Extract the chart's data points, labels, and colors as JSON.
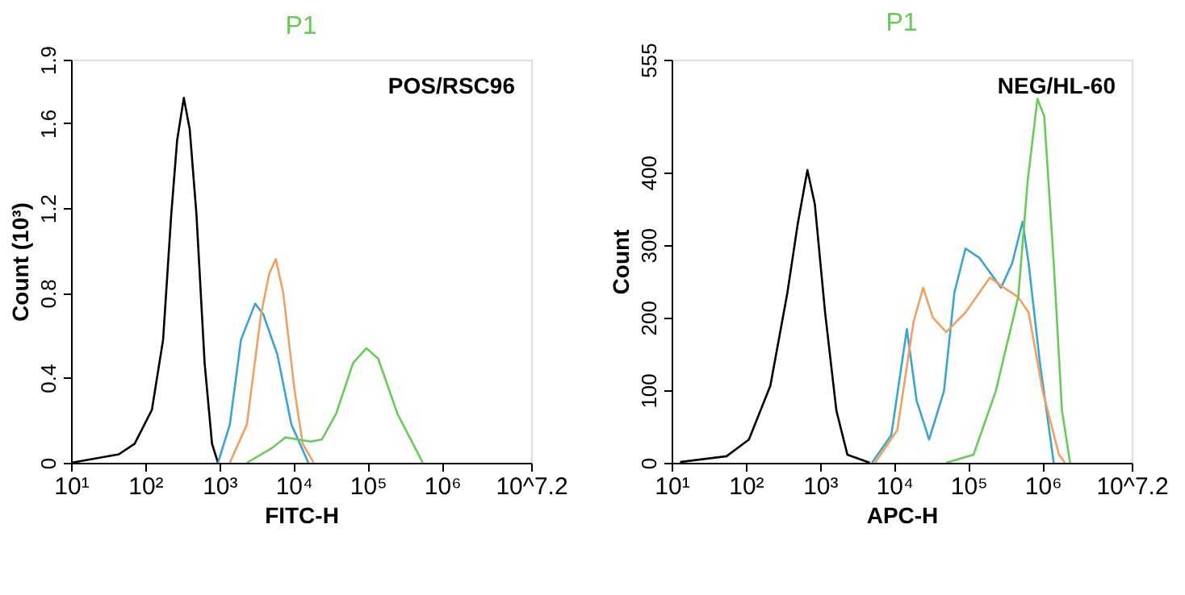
{
  "chart_data": [
    {
      "type": "line",
      "title": "P1",
      "xlabel": "FITC-H",
      "ylabel": "Count (10³)",
      "annotations": [
        "POS/RSC96"
      ],
      "log": "x",
      "grid": false,
      "xlim": [
        10,
        15848932
      ],
      "xticks": [
        {
          "value": 10,
          "label": "10¹"
        },
        {
          "value": 100,
          "label": "10²"
        },
        {
          "value": 1000,
          "label": "10³"
        },
        {
          "value": 10000,
          "label": "10⁴"
        },
        {
          "value": 100000,
          "label": "10⁵"
        },
        {
          "value": 1000000,
          "label": "10⁶"
        },
        {
          "value": 15848932,
          "label": "10^7.2"
        }
      ],
      "ylim": [
        0,
        1.9
      ],
      "yticks": [
        0,
        0.4,
        0.8,
        1.2,
        1.6,
        1.9
      ],
      "series": [
        {
          "color": "#000000",
          "x": [
            10,
            44,
            72,
            123,
            174,
            224,
            269,
            331,
            398,
            490,
            631,
            794,
            955
          ],
          "values": [
            0,
            0.04,
            0.09,
            0.25,
            0.58,
            1.17,
            1.52,
            1.72,
            1.57,
            1.17,
            0.47,
            0.09,
            0
          ]
        },
        {
          "color": "#3aa6d0",
          "x": [
            955,
            1380,
            1950,
            3020,
            3890,
            6030,
            9330,
            15800
          ],
          "values": [
            0,
            0.18,
            0.58,
            0.75,
            0.7,
            0.51,
            0.18,
            0
          ]
        },
        {
          "color": "#f0a060",
          "x": [
            1380,
            2340,
            3630,
            4680,
            5750,
            7240,
            10200,
            13200,
            18600
          ],
          "values": [
            0,
            0.18,
            0.7,
            0.89,
            0.96,
            0.8,
            0.35,
            0.09,
            0
          ]
        },
        {
          "color": "#66cc55",
          "x": [
            2340,
            5130,
            7760,
            11200,
            17000,
            24000,
            37200,
            63100,
            95500,
            138000,
            251000,
            550000
          ],
          "values": [
            0,
            0.07,
            0.12,
            0.11,
            0.1,
            0.11,
            0.23,
            0.47,
            0.54,
            0.49,
            0.23,
            0
          ]
        }
      ]
    },
    {
      "type": "line",
      "title": "P1",
      "xlabel": "APC-H",
      "ylabel": "Count",
      "annotations": [
        "NEG/HL-60"
      ],
      "log": "x",
      "grid": false,
      "xlim": [
        10,
        15848932
      ],
      "xticks": [
        {
          "value": 10,
          "label": "10¹"
        },
        {
          "value": 100,
          "label": "10²"
        },
        {
          "value": 1000,
          "label": "10³"
        },
        {
          "value": 10000,
          "label": "10⁴"
        },
        {
          "value": 100000,
          "label": "10⁵"
        },
        {
          "value": 1000000,
          "label": "10⁶"
        },
        {
          "value": 15848932,
          "label": "10^7.2"
        }
      ],
      "ylim": [
        0,
        555
      ],
      "yticks": [
        0,
        100,
        200,
        300,
        400,
        555
      ],
      "series": [
        {
          "color": "#000000",
          "x": [
            13,
            55,
            110,
            214,
            363,
            501,
            676,
            851,
            1170,
            1660,
            2340,
            4680
          ],
          "values": [
            1,
            9,
            32,
            106,
            234,
            329,
            403,
            356,
            207,
            72,
            11,
            0
          ]
        },
        {
          "color": "#3aa6d0",
          "x": [
            5010,
            9120,
            14800,
            20000,
            29500,
            46800,
            64600,
            91200,
            141000,
            275000,
            389000,
            537000,
            646000,
            912000,
            1410000
          ],
          "values": [
            0,
            38,
            184,
            86,
            32,
            99,
            234,
            295,
            282,
            241,
            275,
            332,
            275,
            140,
            0
          ]
        },
        {
          "color": "#f0a060",
          "x": [
            5500,
            11000,
            18200,
            24500,
            33100,
            50100,
            91200,
            195000,
            302000,
            468000,
            646000,
            1000000,
            1660000,
            2000000
          ],
          "values": [
            0,
            45,
            194,
            241,
            200,
            180,
            207,
            255,
            241,
            228,
            207,
            99,
            11,
            0
          ]
        },
        {
          "color": "#66cc55",
          "x": [
            50100,
            117000,
            234000,
            468000,
            631000,
            851000,
            1050000,
            1410000,
            1820000,
            2340000
          ],
          "values": [
            0,
            11,
            99,
            228,
            390,
            501,
            477,
            275,
            72,
            0
          ]
        }
      ]
    }
  ]
}
